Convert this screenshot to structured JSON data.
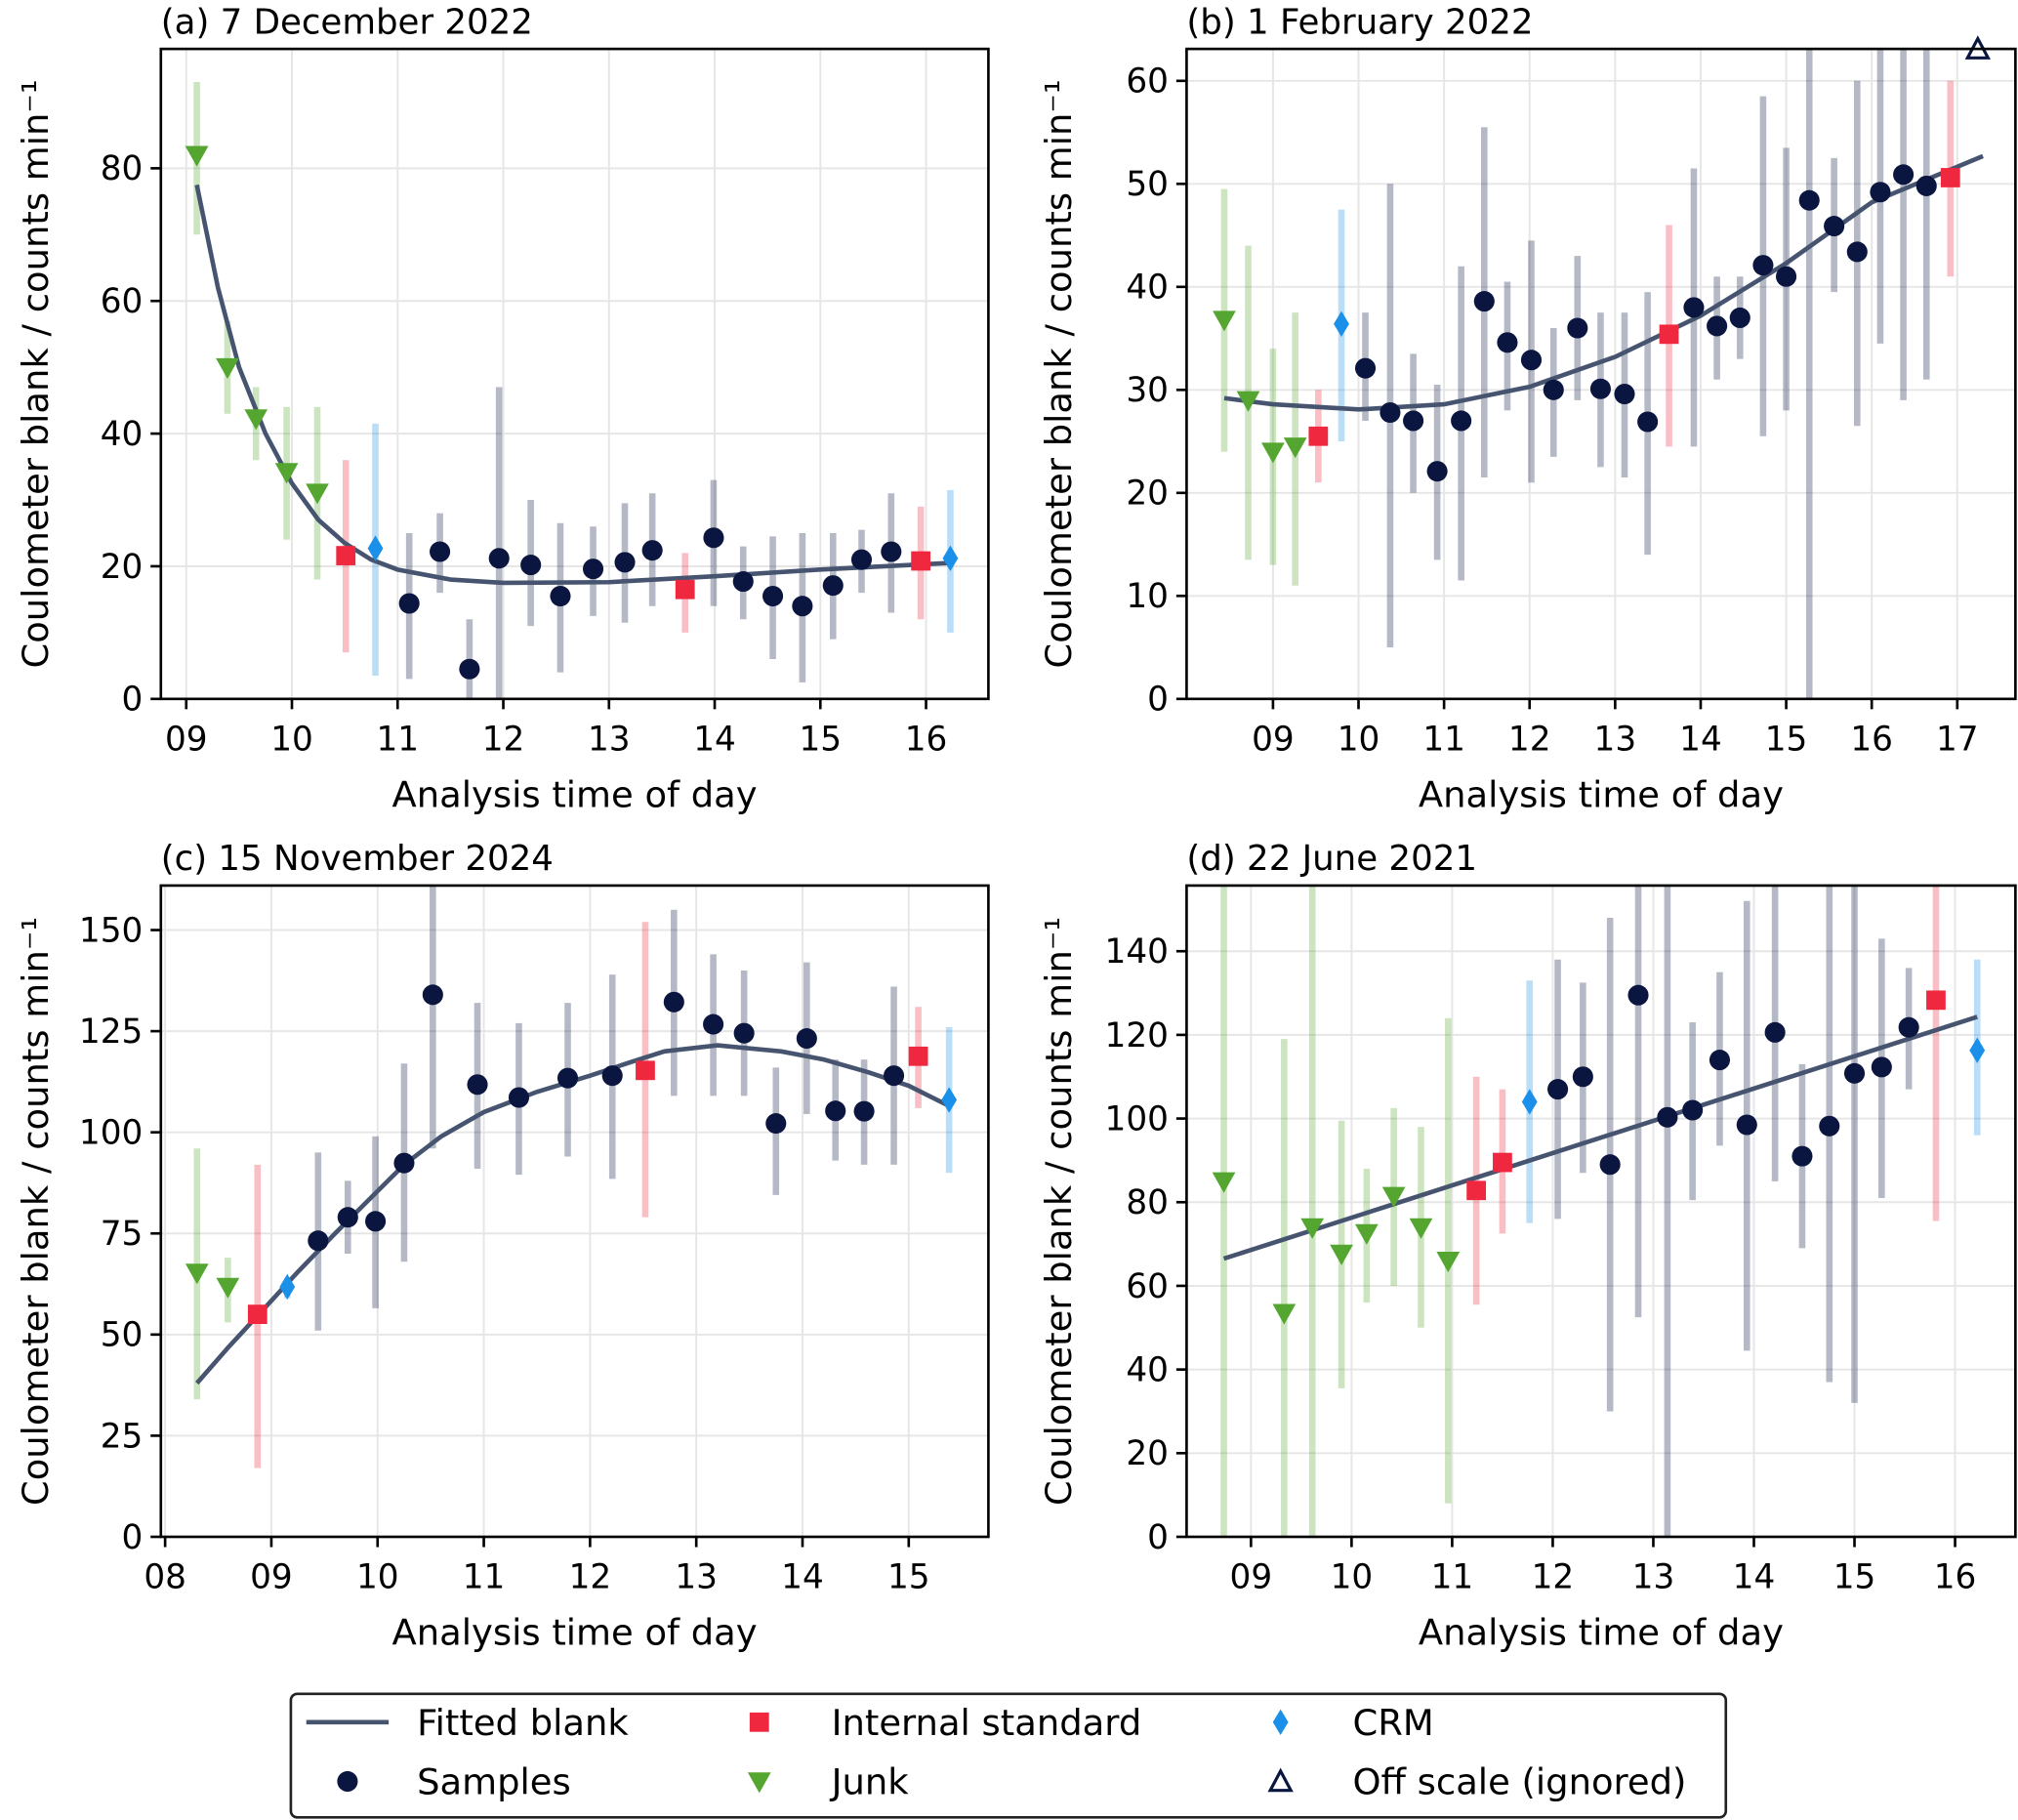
{
  "colors": {
    "fit": "#465470",
    "samples": "#0b1640",
    "internal_standard": "#f0283f",
    "junk": "#55a630",
    "crm": "#1a90e8",
    "off_scale": "#0b1640",
    "grid": "#e6e6e6"
  },
  "legend": {
    "placement": "bottom-center",
    "items": [
      {
        "key": "fit",
        "label": "Fitted blank",
        "marker": "line"
      },
      {
        "key": "samples",
        "label": "Samples",
        "marker": "circle"
      },
      {
        "key": "internal_standard",
        "label": "Internal standard",
        "marker": "square"
      },
      {
        "key": "junk",
        "label": "Junk",
        "marker": "triangle-down"
      },
      {
        "key": "crm",
        "label": "CRM",
        "marker": "diamond"
      },
      {
        "key": "off_scale",
        "label": "Off scale (ignored)",
        "marker": "triangle-up-open"
      }
    ]
  },
  "chart_data": [
    {
      "type": "scatter",
      "title": "(a) 7 December 2022",
      "xlabel": "Analysis time of day",
      "ylabel": "Coulometer blank / counts min⁻¹",
      "xlim": [
        8.76,
        16.59
      ],
      "ylim": [
        0,
        98
      ],
      "xticks": [
        9,
        10,
        11,
        12,
        13,
        14,
        15,
        16
      ],
      "xticklabels": [
        "09",
        "10",
        "11",
        "12",
        "13",
        "14",
        "15",
        "16"
      ],
      "yticks": [
        0,
        20,
        40,
        60,
        80
      ],
      "grid": true,
      "fit": [
        [
          9.1,
          77.5
        ],
        [
          9.3,
          62
        ],
        [
          9.5,
          50
        ],
        [
          9.75,
          40
        ],
        [
          10,
          32.5
        ],
        [
          10.25,
          27
        ],
        [
          10.5,
          23.5
        ],
        [
          10.75,
          21
        ],
        [
          11,
          19.5
        ],
        [
          11.5,
          18
        ],
        [
          12,
          17.5
        ],
        [
          13,
          17.6
        ],
        [
          14,
          18.5
        ],
        [
          15,
          19.5
        ],
        [
          16.23,
          20.5
        ]
      ],
      "junk": [
        [
          9.1,
          82,
          70,
          93
        ],
        [
          9.39,
          50,
          43,
          57
        ],
        [
          9.66,
          42.3,
          36,
          47
        ],
        [
          9.95,
          34.2,
          24,
          44
        ],
        [
          10.24,
          31.1,
          18,
          44
        ]
      ],
      "internal_standard": [
        [
          10.51,
          21.6,
          7,
          36
        ],
        [
          13.72,
          16.5,
          10,
          22
        ],
        [
          15.95,
          20.8,
          12,
          29
        ]
      ],
      "crm": [
        [
          10.79,
          22.7,
          3.5,
          41.5
        ],
        [
          16.23,
          21.2,
          10,
          31.5
        ]
      ],
      "samples": [
        [
          11.11,
          14.4,
          3,
          25
        ],
        [
          11.4,
          22.2,
          16,
          28
        ],
        [
          11.68,
          4.5,
          0,
          12
        ],
        [
          11.96,
          21.2,
          0,
          47
        ],
        [
          12.26,
          20.2,
          11,
          30
        ],
        [
          12.54,
          15.5,
          4,
          26.5
        ],
        [
          12.85,
          19.6,
          12.5,
          26
        ],
        [
          13.15,
          20.6,
          11.5,
          29.5
        ],
        [
          13.41,
          22.4,
          14,
          31
        ],
        [
          13.99,
          24.3,
          14,
          33
        ],
        [
          14.27,
          17.7,
          12,
          23
        ],
        [
          14.55,
          15.5,
          6,
          24.5
        ],
        [
          14.83,
          14,
          2.5,
          25
        ],
        [
          15.12,
          17.1,
          9,
          25
        ],
        [
          15.39,
          21,
          16,
          25.5
        ],
        [
          15.67,
          22.2,
          13,
          31
        ]
      ],
      "off_scale": []
    },
    {
      "type": "scatter",
      "title": "(b) 1 February 2022",
      "xlabel": "Analysis time of day",
      "ylabel": "Coulometer blank / counts min⁻¹",
      "xlim": [
        7.99,
        17.68
      ],
      "ylim": [
        0,
        63.1
      ],
      "xticks": [
        9,
        10,
        11,
        12,
        13,
        14,
        15,
        16,
        17
      ],
      "xticklabels": [
        "09",
        "10",
        "11",
        "12",
        "13",
        "14",
        "15",
        "16",
        "17"
      ],
      "yticks": [
        0,
        10,
        20,
        30,
        40,
        50,
        60
      ],
      "grid": true,
      "fit": [
        [
          8.43,
          29.2
        ],
        [
          9,
          28.6
        ],
        [
          10,
          28.1
        ],
        [
          11,
          28.6
        ],
        [
          12,
          30.3
        ],
        [
          13,
          33.2
        ],
        [
          14,
          37.2
        ],
        [
          15,
          42.3
        ],
        [
          16,
          48.2
        ],
        [
          17.3,
          52.7
        ]
      ],
      "junk": [
        [
          8.43,
          36.8,
          24,
          49.5
        ],
        [
          8.71,
          29,
          13.5,
          44
        ],
        [
          9.0,
          24,
          13,
          34
        ],
        [
          9.26,
          24.5,
          11,
          37.5
        ]
      ],
      "internal_standard": [
        [
          9.53,
          25.5,
          21,
          30
        ],
        [
          13.63,
          35.4,
          24.5,
          46
        ],
        [
          16.92,
          50.6,
          41,
          60
        ]
      ],
      "crm": [
        [
          9.8,
          36.4,
          25,
          47.5
        ]
      ],
      "samples": [
        [
          10.08,
          32.1,
          27,
          37.5
        ],
        [
          10.37,
          27.8,
          5,
          50
        ],
        [
          10.64,
          27,
          20,
          33.5
        ],
        [
          10.92,
          22.1,
          13.5,
          30.5
        ],
        [
          11.2,
          27,
          11.5,
          42
        ],
        [
          11.47,
          38.6,
          21.5,
          55.5
        ],
        [
          11.74,
          34.6,
          28,
          40.5
        ],
        [
          12.02,
          32.9,
          21,
          44.5
        ],
        [
          12.28,
          30,
          23.5,
          36
        ],
        [
          12.56,
          36,
          29,
          43
        ],
        [
          12.83,
          30.1,
          22.5,
          37.5
        ],
        [
          13.11,
          29.6,
          21.5,
          37.5
        ],
        [
          13.38,
          26.9,
          14,
          39.5
        ],
        [
          13.92,
          38,
          24.5,
          51.5
        ],
        [
          14.19,
          36.2,
          31,
          41
        ],
        [
          14.46,
          37,
          33,
          41
        ],
        [
          14.73,
          42.1,
          25.5,
          58.5
        ],
        [
          15.0,
          41,
          28,
          53.5
        ],
        [
          15.27,
          48.4,
          0,
          63
        ],
        [
          15.56,
          45.9,
          39.5,
          52.5
        ],
        [
          15.83,
          43.4,
          26.5,
          60
        ],
        [
          16.1,
          49.2,
          34.5,
          63
        ],
        [
          16.37,
          50.9,
          29,
          63
        ],
        [
          16.64,
          49.8,
          31,
          63
        ]
      ],
      "off_scale": [
        [
          17.24,
          63.1
        ]
      ]
    },
    {
      "type": "scatter",
      "title": "(c) 15 November 2024",
      "xlabel": "Analysis time of day",
      "ylabel": "Coulometer blank / counts min⁻¹",
      "xlim": [
        7.96,
        15.75
      ],
      "ylim": [
        0,
        161
      ],
      "xticks": [
        8,
        9,
        10,
        11,
        12,
        13,
        14,
        15
      ],
      "xticklabels": [
        "08",
        "09",
        "10",
        "11",
        "12",
        "13",
        "14",
        "15"
      ],
      "yticks": [
        0,
        25,
        50,
        75,
        100,
        125,
        150
      ],
      "grid": true,
      "fit": [
        [
          8.3,
          38
        ],
        [
          8.6,
          47
        ],
        [
          8.9,
          55.5
        ],
        [
          9.25,
          65.5
        ],
        [
          9.6,
          75
        ],
        [
          10.25,
          92
        ],
        [
          10.6,
          99
        ],
        [
          11,
          105
        ],
        [
          11.5,
          110
        ],
        [
          12,
          114
        ],
        [
          12.4,
          117.5
        ],
        [
          12.7,
          120
        ],
        [
          13.2,
          121.5
        ],
        [
          13.8,
          120
        ],
        [
          14.2,
          118
        ],
        [
          14.6,
          115
        ],
        [
          15,
          111.5
        ],
        [
          15.38,
          106.5
        ]
      ],
      "junk": [
        [
          8.3,
          65.3,
          34,
          96
        ],
        [
          8.59,
          61.8,
          53,
          69
        ]
      ],
      "internal_standard": [
        [
          8.87,
          55,
          17,
          92
        ],
        [
          12.52,
          115.3,
          79,
          152
        ],
        [
          15.09,
          118.8,
          106,
          131
        ]
      ],
      "crm": [
        [
          9.15,
          61.8,
          59,
          64
        ],
        [
          15.38,
          108,
          90,
          126
        ]
      ],
      "samples": [
        [
          9.44,
          73.2,
          51,
          95
        ],
        [
          9.72,
          79,
          70,
          88
        ],
        [
          9.98,
          78,
          56.5,
          99
        ],
        [
          10.25,
          92.4,
          68,
          117
        ],
        [
          10.52,
          134,
          96,
          161
        ],
        [
          10.94,
          111.8,
          91,
          132
        ],
        [
          11.33,
          108.6,
          89.5,
          127
        ],
        [
          11.79,
          113.4,
          94,
          132
        ],
        [
          12.21,
          114,
          88.5,
          139
        ],
        [
          12.79,
          132.2,
          109,
          155
        ],
        [
          13.16,
          126.7,
          109,
          144
        ],
        [
          13.45,
          124.5,
          109,
          140
        ],
        [
          13.75,
          102.2,
          84.5,
          116
        ],
        [
          14.04,
          123.2,
          104.5,
          142
        ],
        [
          14.31,
          105.3,
          93,
          118
        ],
        [
          14.58,
          105.2,
          92,
          118
        ],
        [
          14.86,
          114,
          92,
          136
        ]
      ],
      "off_scale": []
    },
    {
      "type": "scatter",
      "title": "(d) 22 June 2021",
      "xlabel": "Analysis time of day",
      "ylabel": "Coulometer blank / counts min⁻¹",
      "xlim": [
        8.36,
        16.6
      ],
      "ylim": [
        0,
        155.7
      ],
      "xticks": [
        9,
        10,
        11,
        12,
        13,
        14,
        15,
        16
      ],
      "xticklabels": [
        "09",
        "10",
        "11",
        "12",
        "13",
        "14",
        "15",
        "16"
      ],
      "yticks": [
        0,
        20,
        40,
        60,
        80,
        100,
        120,
        140
      ],
      "grid": true,
      "fit": [
        [
          8.73,
          66.5
        ],
        [
          16.22,
          124.3
        ]
      ],
      "junk": [
        [
          8.73,
          85,
          0,
          156
        ],
        [
          9.33,
          53.5,
          0,
          119
        ],
        [
          9.61,
          74,
          0,
          156
        ],
        [
          9.9,
          67.7,
          35.5,
          99.5
        ],
        [
          10.15,
          72.6,
          56,
          88
        ],
        [
          10.42,
          81.5,
          60,
          102.5
        ],
        [
          10.69,
          74,
          50,
          98
        ],
        [
          10.96,
          66,
          8,
          124
        ]
      ],
      "internal_standard": [
        [
          11.24,
          82.8,
          55.5,
          110
        ],
        [
          11.5,
          89.5,
          72.5,
          107
        ],
        [
          15.81,
          128.3,
          75.5,
          156
        ]
      ],
      "crm": [
        [
          11.77,
          104,
          75,
          133
        ],
        [
          16.22,
          116.3,
          96,
          138
        ]
      ],
      "samples": [
        [
          12.05,
          107,
          76,
          138
        ],
        [
          12.3,
          110,
          87,
          132.5
        ],
        [
          12.57,
          89,
          30,
          148
        ],
        [
          12.85,
          129.5,
          52.5,
          156
        ],
        [
          13.14,
          100.3,
          0,
          156
        ],
        [
          13.39,
          102,
          80.5,
          123
        ],
        [
          13.66,
          114,
          93.5,
          135
        ],
        [
          13.93,
          98.5,
          44.5,
          152
        ],
        [
          14.21,
          120.6,
          85,
          156
        ],
        [
          14.48,
          91,
          69,
          113
        ],
        [
          14.75,
          98.2,
          37,
          156
        ],
        [
          15.0,
          110.8,
          32,
          156
        ],
        [
          15.27,
          112.3,
          81,
          143
        ],
        [
          15.54,
          121.8,
          107,
          136
        ]
      ],
      "off_scale": []
    }
  ]
}
